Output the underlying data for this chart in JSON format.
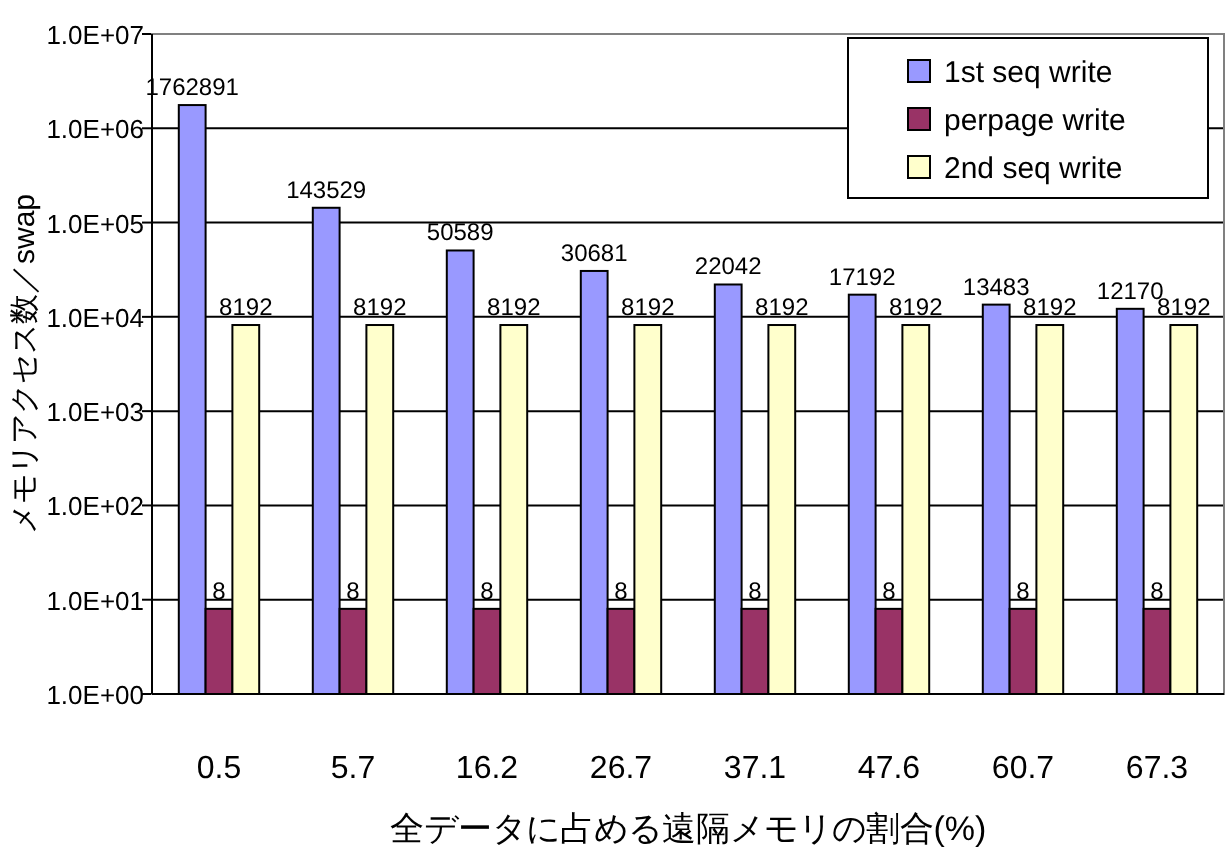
{
  "chart_data": {
    "type": "bar",
    "xlabel": "全データに占める遠隔メモリの割合(%)",
    "ylabel": "メモリアクセス数／swap",
    "categories": [
      "0.5",
      "5.7",
      "16.2",
      "26.7",
      "37.1",
      "47.6",
      "60.7",
      "67.3"
    ],
    "series": [
      {
        "name": "1st seq write",
        "color": "#9999ff",
        "values": [
          1762891,
          143529,
          50589,
          30681,
          22042,
          17192,
          13483,
          12170
        ]
      },
      {
        "name": "perpage write",
        "color": "#993366",
        "values": [
          8,
          8,
          8,
          8,
          8,
          8,
          8,
          8
        ]
      },
      {
        "name": "2nd seq write",
        "color": "#ffffcc",
        "values": [
          8192,
          8192,
          8192,
          8192,
          8192,
          8192,
          8192,
          8192
        ]
      }
    ],
    "log": true,
    "ylim": [
      1,
      10000000
    ],
    "yticks": [
      {
        "value": 1,
        "label": "1.0E+00"
      },
      {
        "value": 10,
        "label": "1.0E+01"
      },
      {
        "value": 100,
        "label": "1.0E+02"
      },
      {
        "value": 1000,
        "label": "1.0E+03"
      },
      {
        "value": 10000,
        "label": "1.0E+04"
      },
      {
        "value": 100000,
        "label": "1.0E+05"
      },
      {
        "value": 1000000,
        "label": "1.0E+06"
      },
      {
        "value": 10000000,
        "label": "1.0E+07"
      }
    ],
    "grid": "y",
    "legend": "top right",
    "data_labels": true
  }
}
